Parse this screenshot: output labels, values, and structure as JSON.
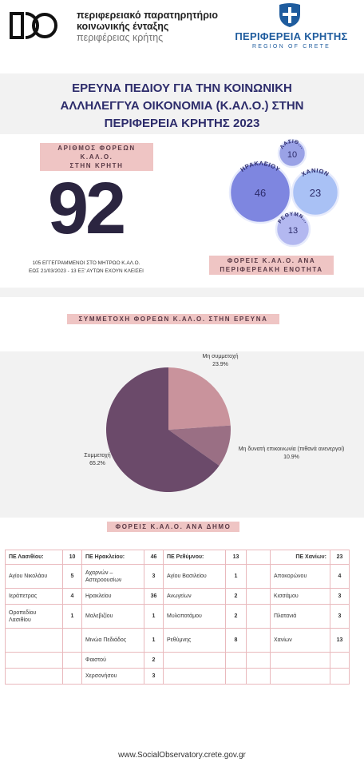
{
  "header": {
    "observatory_line1": "περιφερειακό παρατηρητήριο",
    "observatory_line2": "κοινωνικής ένταξης",
    "observatory_line3": "περιφέρειας κρήτης",
    "region_name": "ΠΕΡΙΦΕΡΕΙΑ ΚΡΗΤΗΣ",
    "region_sub": "REGION OF CRETE"
  },
  "title": {
    "line1": "ΕΡΕΥΝΑ ΠΕΔΙΟΥ ΓΙΑ ΤΗΝ ΚΟΙΝΩΝΙΚΗ",
    "line2": "ΑΛΛΗΛΕΓΓΥΑ ΟΙΚΟΝΟΜΙΑ (Κ.ΑΛ.Ο.) ΣΤΗΝ",
    "line3": "ΠΕΡΙΦΕΡΕΙΑ ΚΡΗΤΗΣ 2023"
  },
  "kpi": {
    "label_line1": "ΑΡΙΘΜΟΣ ΦΟΡΕΩΝ Κ.ΑΛ.Ο.",
    "label_line2": "ΣΤΗΝ ΚΡΗΤΗ",
    "value": "92",
    "note_line1": "105 ΕΓΓΕΓΡΑΜΜΕΝΟΙ ΣΤΟ ΜΗΤΡΩΟ Κ.ΑΛ.Ο.",
    "note_line2": "ΕΩΣ 21/03/2023 - 13 ΕΞ' ΑΥΤΩΝ ΕΧΟΥΝ ΚΛΕΙΣΕΙ"
  },
  "bubbles": {
    "label_line1": "ΦΟΡΕΙΣ Κ.ΑΛ.Ο. ΑΝΑ",
    "label_line2": "ΠΕΡΙΦΕΡΕΑΚΗ ΕΝΟΤΗΤΑ",
    "items": [
      {
        "name": "ΛΑΣΙΘ...",
        "value": "10"
      },
      {
        "name": "ΗΡΑΚΛΕΙΟΥ",
        "value": "46"
      },
      {
        "name": "ΧΑΝΙΩΝ",
        "value": "23"
      },
      {
        "name": "ΡΕΘΥΜΝ...",
        "value": "13"
      }
    ],
    "colors": [
      "#9aa2e6",
      "#7e86e0",
      "#a9c1f5",
      "#b3b8f0"
    ]
  },
  "participation": {
    "label": "ΣΥΜΜΕΤΟΧΗ ΦΟΡΕΩΝ Κ.ΑΛ.Ο. ΣΤΗΝ ΕΡΕΥΝΑ"
  },
  "chart_data": {
    "type": "pie",
    "slices": [
      {
        "name": "Μη συμμετοχή",
        "pct_label": "23.9%",
        "value": 23.9,
        "color": "#c9939c"
      },
      {
        "name": "Μη δυνατή επικοινωνία (πιθανά ανενεργοί)",
        "pct_label": "10.9%",
        "value": 10.9,
        "color": "#9a6f84"
      },
      {
        "name": "Συμμετοχή",
        "pct_label": "65.2%",
        "value": 65.2,
        "color": "#6b4a6a"
      }
    ]
  },
  "municipalities": {
    "label": "ΦΟΡΕΙΣ Κ.ΑΛ.Ο. ΑΝΑ ΔΗΜΟ",
    "headers": [
      {
        "name": "ΠΕ Λασιθίου:",
        "value": "10"
      },
      {
        "name": "ΠΕ Ηρακλείου:",
        "value": "46"
      },
      {
        "name": "ΠΕ Ρεθύμνου:",
        "value": "13"
      },
      {
        "name": "ΠΕ Χανίων:",
        "value": "23"
      }
    ],
    "rows": [
      [
        "Αγίου Νικολάου",
        "5",
        "Αχαρνών – Αστεροουσίων",
        "3",
        "Αγίου Βασιλείου",
        "1",
        "Αποκορώνου",
        "4"
      ],
      [
        "Ιεράπετρας",
        "4",
        "Ηρακλείου",
        "36",
        "Ανωγείων",
        "2",
        "Κισσάμου",
        "3"
      ],
      [
        "Οροπεδίου Λασιθίου",
        "1",
        "Μαλεβιζίου",
        "1",
        "Μυλοποτάμου",
        "2",
        "Πλατανιά",
        "3"
      ],
      [
        "",
        "",
        "Μινώα Πεδιάδος",
        "1",
        "Ρεθύμνης",
        "8",
        "Χανίων",
        "13"
      ],
      [
        "",
        "",
        "Φαιστού",
        "2",
        "",
        "",
        "",
        ""
      ],
      [
        "",
        "",
        "Χερσονήσου",
        "3",
        "",
        "",
        "",
        ""
      ]
    ]
  },
  "footer": {
    "url": "www.SocialObservatory.crete.gov.gr"
  }
}
